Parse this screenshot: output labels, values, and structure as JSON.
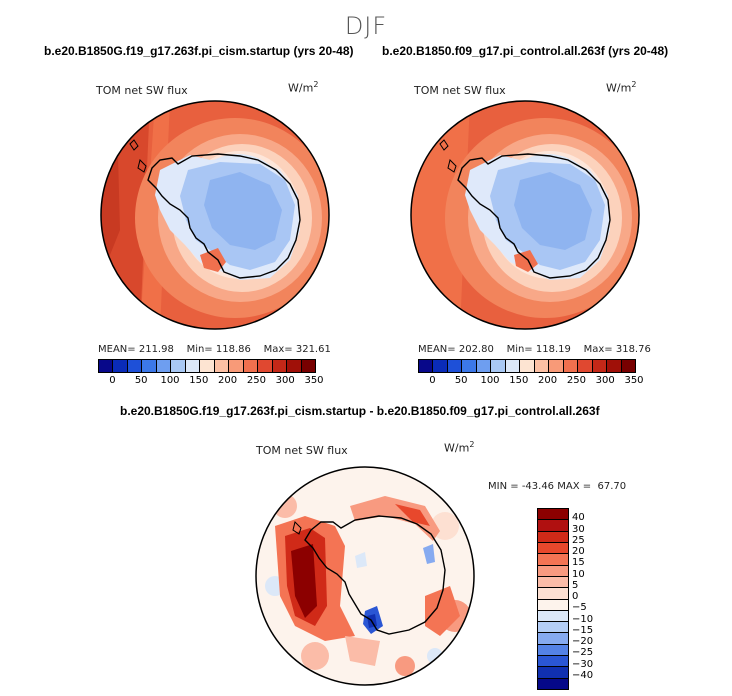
{
  "season": "DJF",
  "panels": [
    {
      "run_title": "b.e20.B1850G.f19_g17.263f.pi_cism.startup (yrs 20-48)",
      "variable": "TOM net SW flux",
      "units": "W/m",
      "units_exp": "2",
      "mean_label": "MEAN=",
      "mean": "211.98",
      "min_label": "Min=",
      "min": "118.86",
      "max_label": "Max=",
      "max": "321.61"
    },
    {
      "run_title": "b.e20.B1850.f09_g17.pi_control.all.263f (yrs 20-48)",
      "variable": "TOM net SW flux",
      "units": "W/m",
      "units_exp": "2",
      "mean_label": "MEAN=",
      "mean": "202.80",
      "min_label": "Min=",
      "min": "118.19",
      "max_label": "Max=",
      "max": "318.76"
    }
  ],
  "abs_colorbar": {
    "ticks": [
      "0",
      "50",
      "100",
      "150",
      "200",
      "250",
      "300",
      "350"
    ],
    "colors": [
      "#08088a",
      "#0a2bb8",
      "#1e50d8",
      "#3c78e8",
      "#6e9ef0",
      "#a8c8f4",
      "#dce8f8",
      "#fde4d2",
      "#fcc0a4",
      "#f89a78",
      "#f0704e",
      "#e04830",
      "#c42818",
      "#a01008",
      "#780000"
    ]
  },
  "diff": {
    "title": "b.e20.B1850G.f19_g17.263f.pi_cism.startup - b.e20.B1850.f09_g17.pi_control.all.263f",
    "variable": "TOM net SW flux",
    "units": "W/m",
    "units_exp": "2",
    "min_label": "MIN =",
    "min": "-43.46",
    "max_label": "MAX =",
    "max": "67.70",
    "ticks": [
      "40",
      "30",
      "25",
      "20",
      "15",
      "10",
      "5",
      "0",
      "−5",
      "−10",
      "−15",
      "−20",
      "−25",
      "−30",
      "−40"
    ],
    "colors": [
      "#8c0000",
      "#b01010",
      "#d02a18",
      "#e8482c",
      "#f47454",
      "#f89a80",
      "#fbbca8",
      "#fde0d2",
      "#fdf3ec",
      "#dce8f8",
      "#b4cef6",
      "#86aaf0",
      "#5482e6",
      "#2a56d4",
      "#1030b0",
      "#050888"
    ]
  }
}
